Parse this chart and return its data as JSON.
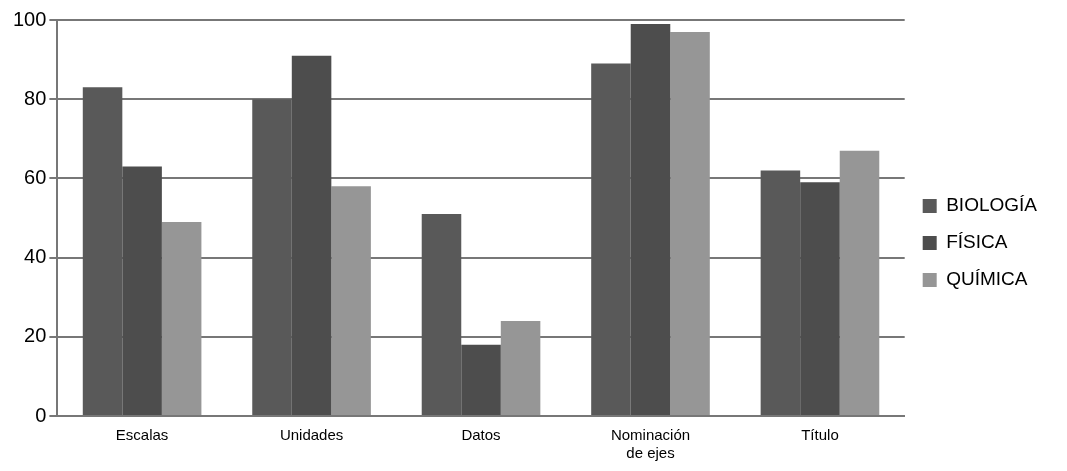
{
  "chart_data": {
    "type": "bar",
    "categories": [
      "Escalas",
      "Unidades",
      "Datos",
      "Nominación de ejes",
      "Título"
    ],
    "series": [
      {
        "name": "BIOLOGÍA",
        "color": "#595959",
        "values": [
          83,
          80,
          51,
          89,
          62
        ]
      },
      {
        "name": "FÍSICA",
        "color": "#4d4d4d",
        "values": [
          63,
          91,
          18,
          99,
          59
        ]
      },
      {
        "name": "QUÍMICA",
        "color": "#969696",
        "values": [
          49,
          58,
          24,
          97,
          67
        ]
      }
    ],
    "ylim": [
      0,
      100
    ],
    "yticks": [
      0,
      20,
      40,
      60,
      80,
      100
    ],
    "grid": "y",
    "legend": "right"
  }
}
